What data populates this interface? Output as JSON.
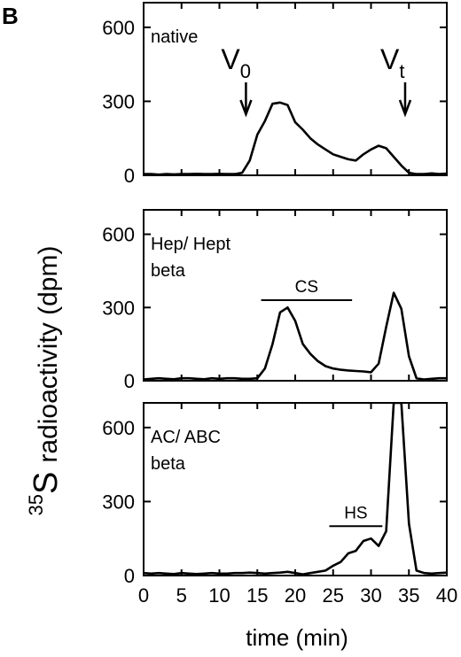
{
  "figure": {
    "panel_label": "B",
    "xlabel": "time (min)",
    "ylabel_isotope_mass": "35",
    "ylabel_isotope_symbol": "S",
    "ylabel_text": "radioactivity (dpm)"
  },
  "chart_data": [
    {
      "type": "line",
      "panel": "top",
      "annotation_lines": [
        "native"
      ],
      "x_range": [
        0,
        40
      ],
      "x_ticks": [
        0,
        5,
        10,
        15,
        20,
        25,
        30,
        35,
        40
      ],
      "ylim": [
        0,
        700
      ],
      "y_ticks": [
        0,
        300,
        600
      ],
      "grid": false,
      "markers": [
        {
          "base": "V",
          "sub": "0",
          "x": 13.5
        },
        {
          "base": "V",
          "sub": "t",
          "x": 34.5
        }
      ],
      "bars": [],
      "series": [
        {
          "x": [
            0,
            1,
            2,
            3,
            4,
            5,
            6,
            7,
            8,
            9,
            10,
            11,
            12,
            13,
            14,
            15,
            16,
            17,
            18,
            19,
            20,
            21,
            22,
            23,
            24,
            25,
            26,
            27,
            28,
            29,
            30,
            31,
            32,
            33,
            34,
            35,
            36,
            37,
            38,
            39,
            40
          ],
          "y": [
            5,
            5,
            3,
            5,
            4,
            5,
            5,
            6,
            5,
            5,
            6,
            5,
            5,
            10,
            60,
            165,
            220,
            290,
            295,
            285,
            215,
            185,
            150,
            125,
            105,
            85,
            75,
            65,
            60,
            85,
            105,
            120,
            110,
            75,
            40,
            10,
            5,
            5,
            8,
            5,
            7
          ]
        }
      ]
    },
    {
      "type": "line",
      "panel": "middle",
      "annotation_lines": [
        "Hep/ Hept",
        "beta"
      ],
      "x_range": [
        0,
        40
      ],
      "x_ticks": [
        0,
        5,
        10,
        15,
        20,
        25,
        30,
        35,
        40
      ],
      "ylim": [
        0,
        700
      ],
      "y_ticks": [
        0,
        300,
        600
      ],
      "grid": false,
      "markers": [],
      "bars": [
        {
          "label": "CS",
          "x_start": 15.5,
          "x_end": 27.5,
          "y": 330
        }
      ],
      "series": [
        {
          "x": [
            0,
            1,
            2,
            3,
            4,
            5,
            6,
            7,
            8,
            9,
            10,
            11,
            12,
            13,
            14,
            15,
            16,
            17,
            18,
            19,
            20,
            21,
            22,
            23,
            24,
            25,
            26,
            27,
            28,
            29,
            30,
            31,
            32,
            33,
            34,
            35,
            36,
            37,
            38,
            39,
            40
          ],
          "y": [
            5,
            8,
            10,
            8,
            6,
            10,
            10,
            8,
            6,
            10,
            8,
            10,
            10,
            8,
            8,
            10,
            50,
            150,
            280,
            300,
            245,
            150,
            110,
            80,
            60,
            50,
            45,
            42,
            40,
            38,
            35,
            70,
            220,
            360,
            295,
            100,
            10,
            5,
            8,
            10,
            10
          ]
        }
      ]
    },
    {
      "type": "line",
      "panel": "bottom",
      "annotation_lines": [
        "AC/ ABC",
        "beta"
      ],
      "x_range": [
        0,
        40
      ],
      "x_ticks": [
        0,
        5,
        10,
        15,
        20,
        25,
        30,
        35,
        40
      ],
      "ylim": [
        0,
        700
      ],
      "y_ticks": [
        0,
        300,
        600
      ],
      "grid": false,
      "markers": [],
      "bars": [
        {
          "label": "HS",
          "x_start": 24.5,
          "x_end": 31.5,
          "y": 200
        }
      ],
      "series": [
        {
          "x": [
            0,
            1,
            2,
            3,
            4,
            5,
            6,
            7,
            8,
            9,
            10,
            11,
            12,
            13,
            14,
            15,
            16,
            17,
            18,
            19,
            20,
            21,
            22,
            23,
            24,
            25,
            26,
            27,
            28,
            29,
            30,
            31,
            32,
            33,
            34,
            35,
            36,
            37,
            38,
            39,
            40
          ],
          "y": [
            10,
            8,
            10,
            8,
            6,
            10,
            8,
            6,
            8,
            10,
            8,
            8,
            10,
            10,
            12,
            10,
            8,
            10,
            12,
            15,
            10,
            5,
            10,
            15,
            20,
            40,
            55,
            90,
            100,
            140,
            150,
            120,
            180,
            700,
            700,
            210,
            20,
            10,
            8,
            10,
            12
          ]
        }
      ]
    }
  ]
}
